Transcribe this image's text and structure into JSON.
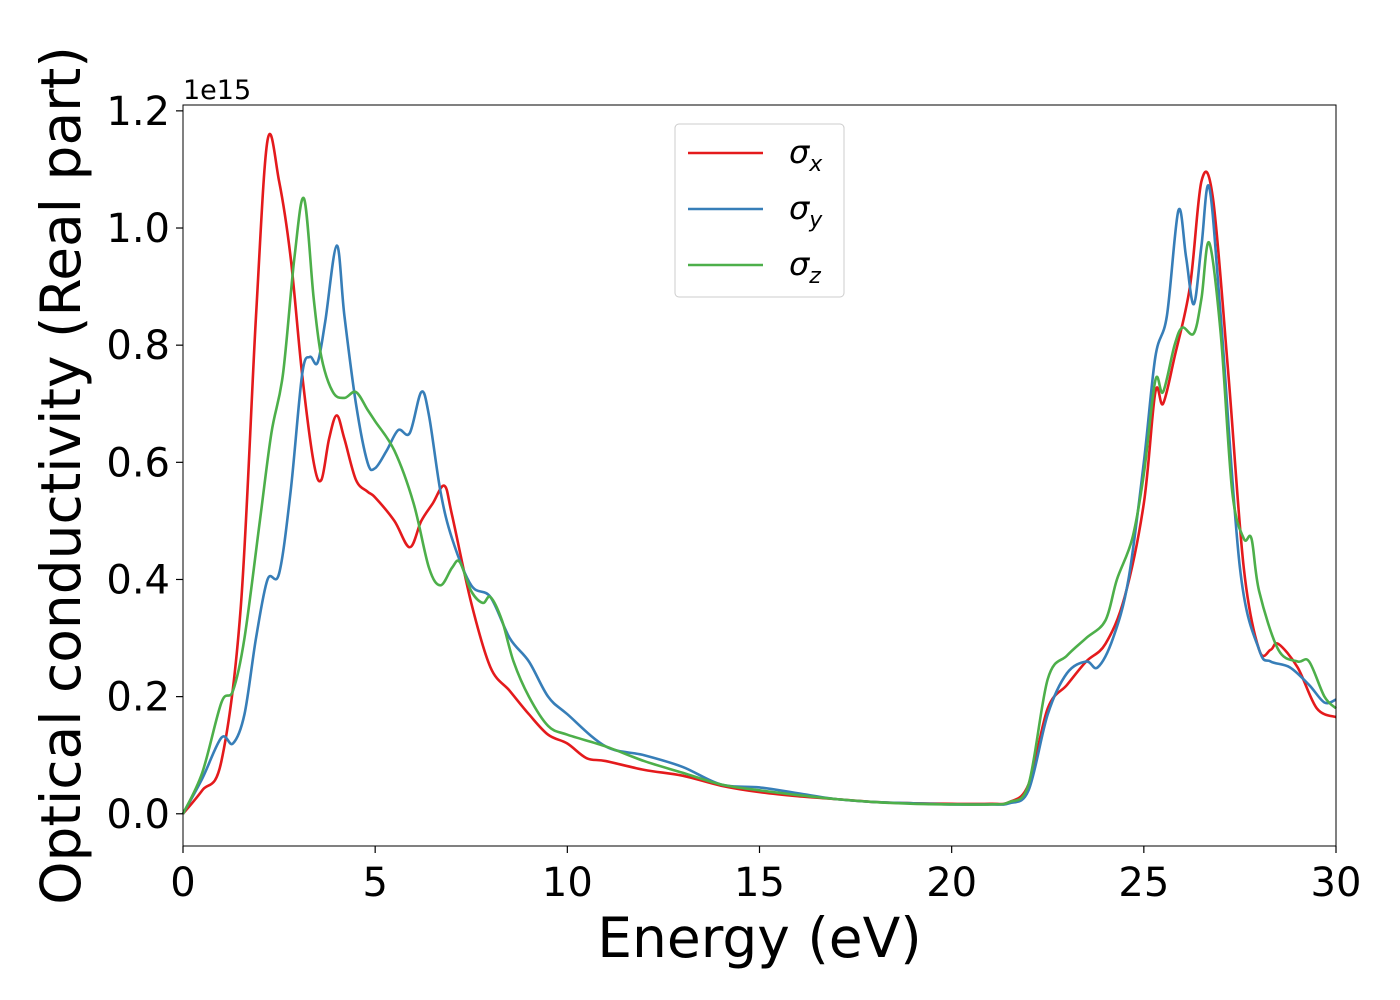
{
  "chart_data": {
    "type": "line",
    "title": "",
    "xlabel": "Energy (eV)",
    "ylabel": "Optical conductivity (Real part)",
    "y_offset_label": "1e15",
    "xlim": [
      0,
      30
    ],
    "ylim": [
      -0.055,
      1.21
    ],
    "xticks": [
      0,
      5,
      10,
      15,
      20,
      25,
      30
    ],
    "xtick_labels": [
      "0",
      "5",
      "10",
      "15",
      "20",
      "25",
      "30"
    ],
    "yticks": [
      0.0,
      0.2,
      0.4,
      0.6,
      0.8,
      1.0,
      1.2
    ],
    "ytick_labels": [
      "0.0",
      "0.2",
      "0.4",
      "0.6",
      "0.8",
      "1.0",
      "1.2"
    ],
    "grid": false,
    "legend_position": "top-center",
    "series": [
      {
        "name": "σx",
        "legend_base": "σ",
        "legend_sub": "x",
        "color": "#e41a1c",
        "x": [
          0,
          0.5,
          1.0,
          1.5,
          1.9,
          2.2,
          2.5,
          2.8,
          3.1,
          3.4,
          3.6,
          3.8,
          4.0,
          4.2,
          4.5,
          4.8,
          5.0,
          5.5,
          5.9,
          6.2,
          6.5,
          6.8,
          7.0,
          7.5,
          8.0,
          8.5,
          9.0,
          9.5,
          10.0,
          10.5,
          11.0,
          12.0,
          13.0,
          14.0,
          15.0,
          16.0,
          17.0,
          18.0,
          19.0,
          20.0,
          21.0,
          21.5,
          22.0,
          22.5,
          23.0,
          23.5,
          24.0,
          24.5,
          25.0,
          25.3,
          25.5,
          25.8,
          26.2,
          26.5,
          26.8,
          27.2,
          27.6,
          28.0,
          28.3,
          28.5,
          29.0,
          29.5,
          30.0
        ],
        "y": [
          0,
          0.04,
          0.09,
          0.35,
          0.85,
          1.15,
          1.08,
          0.95,
          0.75,
          0.6,
          0.57,
          0.64,
          0.68,
          0.64,
          0.57,
          0.55,
          0.54,
          0.5,
          0.455,
          0.5,
          0.53,
          0.56,
          0.51,
          0.36,
          0.25,
          0.21,
          0.17,
          0.135,
          0.12,
          0.095,
          0.09,
          0.075,
          0.065,
          0.048,
          0.037,
          0.03,
          0.025,
          0.02,
          0.018,
          0.017,
          0.017,
          0.02,
          0.05,
          0.18,
          0.22,
          0.26,
          0.29,
          0.37,
          0.53,
          0.72,
          0.7,
          0.78,
          0.9,
          1.08,
          1.05,
          0.75,
          0.42,
          0.28,
          0.28,
          0.29,
          0.25,
          0.18,
          0.165
        ]
      },
      {
        "name": "σy",
        "legend_base": "σ",
        "legend_sub": "y",
        "color": "#377eb8",
        "x": [
          0,
          0.5,
          1.0,
          1.3,
          1.6,
          1.9,
          2.2,
          2.5,
          2.8,
          3.1,
          3.3,
          3.5,
          3.7,
          4.0,
          4.2,
          4.5,
          4.8,
          5.0,
          5.3,
          5.6,
          5.9,
          6.2,
          6.4,
          6.7,
          7.0,
          7.5,
          8.0,
          8.5,
          9.0,
          9.5,
          10.0,
          11.0,
          12.0,
          13.0,
          14.0,
          15.0,
          16.0,
          17.0,
          18.0,
          19.0,
          20.0,
          21.0,
          21.5,
          22.0,
          22.5,
          23.0,
          23.5,
          23.8,
          24.2,
          24.6,
          25.0,
          25.3,
          25.6,
          25.9,
          26.1,
          26.3,
          26.5,
          26.7,
          27.0,
          27.5,
          28.0,
          28.3,
          28.8,
          29.3,
          29.7,
          30.0
        ],
        "y": [
          0,
          0.06,
          0.13,
          0.12,
          0.17,
          0.3,
          0.4,
          0.41,
          0.55,
          0.75,
          0.78,
          0.77,
          0.84,
          0.97,
          0.85,
          0.7,
          0.6,
          0.59,
          0.62,
          0.655,
          0.65,
          0.72,
          0.68,
          0.55,
          0.47,
          0.39,
          0.37,
          0.3,
          0.26,
          0.2,
          0.17,
          0.115,
          0.1,
          0.08,
          0.05,
          0.045,
          0.035,
          0.025,
          0.02,
          0.018,
          0.016,
          0.016,
          0.018,
          0.04,
          0.17,
          0.24,
          0.26,
          0.25,
          0.3,
          0.4,
          0.6,
          0.78,
          0.85,
          1.03,
          0.95,
          0.87,
          0.97,
          1.07,
          0.85,
          0.42,
          0.28,
          0.26,
          0.25,
          0.22,
          0.19,
          0.195
        ]
      },
      {
        "name": "σz",
        "legend_base": "σ",
        "legend_sub": "z",
        "color": "#4daf4a",
        "x": [
          0,
          0.5,
          1.0,
          1.3,
          1.6,
          2.0,
          2.3,
          2.6,
          2.9,
          3.15,
          3.4,
          3.6,
          3.9,
          4.2,
          4.5,
          4.8,
          5.0,
          5.5,
          6.0,
          6.4,
          6.7,
          7.0,
          7.2,
          7.5,
          7.8,
          8.0,
          8.3,
          8.6,
          9.0,
          9.5,
          10.0,
          11.0,
          12.0,
          13.0,
          14.0,
          15.0,
          16.0,
          17.0,
          18.0,
          19.0,
          20.0,
          21.0,
          21.5,
          22.0,
          22.5,
          23.0,
          23.5,
          24.0,
          24.3,
          24.7,
          25.0,
          25.3,
          25.5,
          25.8,
          26.0,
          26.3,
          26.5,
          26.7,
          27.0,
          27.3,
          27.6,
          27.8,
          28.0,
          28.5,
          29.0,
          29.3,
          29.7,
          30.0
        ],
        "y": [
          0,
          0.07,
          0.19,
          0.21,
          0.3,
          0.5,
          0.65,
          0.75,
          0.95,
          1.05,
          0.88,
          0.78,
          0.72,
          0.71,
          0.72,
          0.69,
          0.67,
          0.62,
          0.53,
          0.42,
          0.39,
          0.42,
          0.43,
          0.38,
          0.36,
          0.37,
          0.33,
          0.26,
          0.2,
          0.15,
          0.135,
          0.115,
          0.09,
          0.07,
          0.05,
          0.04,
          0.032,
          0.025,
          0.02,
          0.017,
          0.016,
          0.016,
          0.02,
          0.05,
          0.23,
          0.27,
          0.3,
          0.33,
          0.4,
          0.47,
          0.58,
          0.74,
          0.72,
          0.8,
          0.83,
          0.82,
          0.88,
          0.975,
          0.82,
          0.55,
          0.47,
          0.47,
          0.38,
          0.28,
          0.26,
          0.26,
          0.2,
          0.18
        ]
      }
    ]
  }
}
